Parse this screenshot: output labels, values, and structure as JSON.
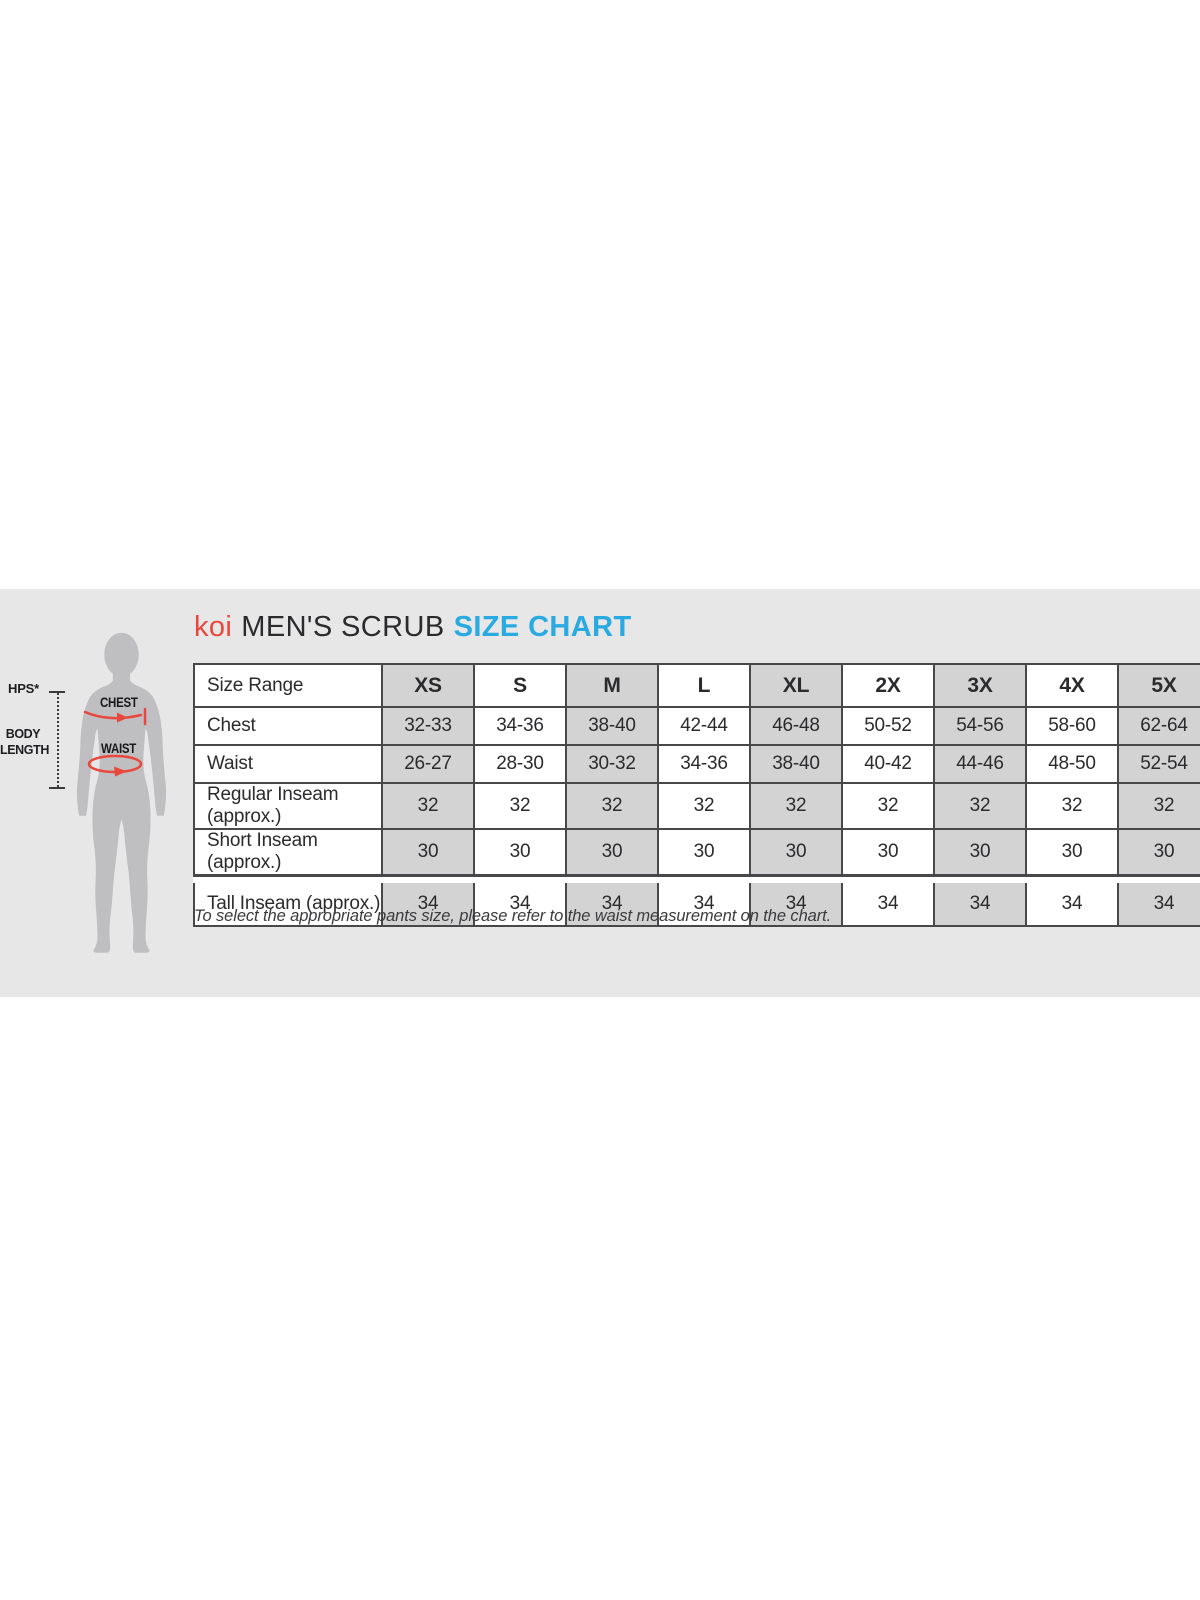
{
  "panel": {
    "title": {
      "brand": "koi",
      "product": "MEN'S SCRUB",
      "highlight": "SIZE CHART"
    },
    "figure": {
      "hps_label": "HPS*",
      "body_length_line1": "BODY",
      "body_length_line2": "LENGTH",
      "chest_label": "CHEST",
      "waist_label": "WAIST"
    },
    "footnote": "To select the appropriate pants size, please refer to the waist measurement on the chart."
  },
  "colors": {
    "brand_red": "#E8473C",
    "highlight_cyan": "#29ABE2",
    "panel_bg": "#E7E7E8",
    "cell_grey": "#D3D3D4",
    "border_dark": "#48484A",
    "silhouette_grey": "#BFBFC1",
    "text_dark": "#2B2B2D"
  },
  "chart_data": {
    "type": "table",
    "title": "koi MEN'S SCRUB SIZE CHART",
    "columns": [
      "Size Range",
      "XS",
      "S",
      "M",
      "L",
      "XL",
      "2X",
      "3X",
      "4X",
      "5X"
    ],
    "rows": [
      {
        "label": "Chest",
        "values": [
          "32-33",
          "34-36",
          "38-40",
          "42-44",
          "46-48",
          "50-52",
          "54-56",
          "58-60",
          "62-64"
        ]
      },
      {
        "label": "Waist",
        "values": [
          "26-27",
          "28-30",
          "30-32",
          "34-36",
          "38-40",
          "40-42",
          "44-46",
          "48-50",
          "52-54"
        ]
      },
      {
        "label": "Regular Inseam (approx.)",
        "values": [
          "32",
          "32",
          "32",
          "32",
          "32",
          "32",
          "32",
          "32",
          "32"
        ]
      },
      {
        "label": "Short Inseam (approx.)",
        "values": [
          "30",
          "30",
          "30",
          "30",
          "30",
          "30",
          "30",
          "30",
          "30"
        ]
      },
      {
        "label": "Tall Inseam (approx.)",
        "values": [
          "34",
          "34",
          "34",
          "34",
          "34",
          "34",
          "34",
          "34",
          "34"
        ]
      }
    ],
    "layout": {
      "shaded_size_columns": [
        "XS",
        "M",
        "XL",
        "3X",
        "5X"
      ],
      "last_row_separated": true,
      "right_edge_clipped": true
    }
  }
}
